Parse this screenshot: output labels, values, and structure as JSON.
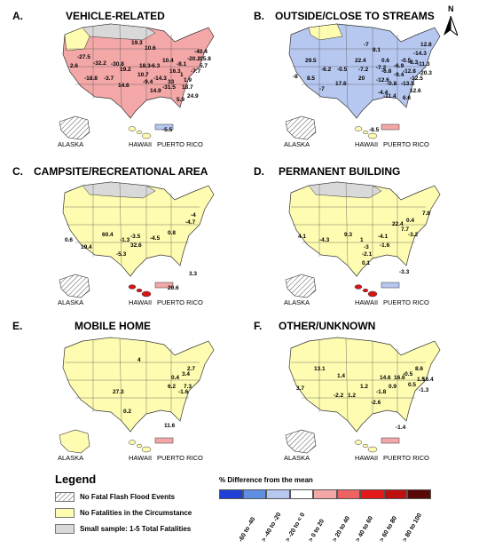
{
  "panels": [
    {
      "letter": "A.",
      "title": "VEHICLE-RELATED",
      "regions": [
        "ALASKA",
        "HAWAII",
        "PUERTO RICO"
      ],
      "values": [
        "2.6",
        "-27.5",
        "-32.2",
        "-30.8",
        "-18.8",
        "-3.7",
        "19.2",
        "14.6",
        "19.3",
        "10.6",
        "18.3",
        "-6.3",
        "10.7",
        "-9.4",
        "-14.3",
        "14.9",
        "-31.5",
        "33",
        "16.3",
        "10.4",
        "-8.1",
        "-20.2",
        "-40.4",
        "-15.8",
        "5.7",
        "-7.7",
        "1",
        "1.9",
        "18.7",
        "24.9",
        "5.9",
        "-5.5"
      ]
    },
    {
      "letter": "B.",
      "title": "OUTSIDE/CLOSE TO STREAMS",
      "regions": [
        "ALASKA",
        "HAWAII",
        "PUERTO RICO"
      ],
      "values": [
        "29.5",
        "-8",
        "8.5",
        "-6.2",
        "-0.5",
        "17.6",
        "-7",
        "-7.2",
        "22.4",
        "20",
        "-7.2",
        "8.1",
        "0.6",
        "-6.8",
        "-12.6",
        "-0.8",
        "-9.4",
        "-6.9",
        "-0.5",
        "-12.8",
        "-8.3",
        "-14.3",
        "-11.3",
        "-20.3",
        "-12.5",
        "-13.5",
        "12.6",
        "6.6",
        "-4.4",
        "-11.4",
        "-7",
        "12.8",
        "-8.5"
      ]
    },
    {
      "letter": "C.",
      "title": "CAMPSITE/RECREATIONAL AREA",
      "regions": [
        "ALASKA",
        "HAWAII",
        "PUERTO RICO"
      ],
      "values": [
        "0.6",
        "19.4",
        "60.4",
        "-1.3",
        "-3.5",
        "-5.3",
        "32.6",
        "-4.5",
        "-4.7",
        "-4",
        "0.8",
        "3.3",
        "20.6"
      ]
    },
    {
      "letter": "D.",
      "title": "PERMANENT BUILDING",
      "regions": [
        "ALASKA",
        "HAWAII",
        "PUERTO RICO"
      ],
      "values": [
        "4.1",
        "-4.3",
        "9.3",
        "1",
        "-3",
        "-2.1",
        "-4.1",
        "-1.6",
        "0.1",
        "22.4",
        "7.7",
        "0.4",
        "-3.2",
        "7.8",
        "-3.3"
      ]
    },
    {
      "letter": "E.",
      "title": "MOBILE HOME",
      "regions": [
        "ALASKA",
        "HAWAII",
        "PUERTO RICO"
      ],
      "values": [
        "27.3",
        "4",
        "0.2",
        "0.4",
        "6.2",
        "3.4",
        "-1.6",
        "7.3",
        "2.7",
        "11.6"
      ]
    },
    {
      "letter": "F.",
      "title": "OTHER/UNKNOWN",
      "regions": [
        "ALASKA",
        "HAWAII",
        "PUERTO RICO"
      ],
      "values": [
        "13.1",
        "3.7",
        "1.4",
        "1.2",
        "-2.2",
        "1.2",
        "-2.6",
        "14.6",
        "-1.8",
        "0.9",
        "16.6",
        "-0.5",
        "8.6",
        "0.5",
        "1.5",
        "-1.3",
        "16.4",
        "-1.4"
      ]
    }
  ],
  "north": "N",
  "legend": {
    "title": "Legend",
    "items": [
      {
        "label": "No Fatal Flash Flood Events",
        "swatch": "hatch"
      },
      {
        "label": "No Fatalities in the Circumstance",
        "swatch": "#fefcb0"
      },
      {
        "label": "Small sample: 1-5 Total Fatalities",
        "swatch": "#d9d9d9"
      }
    ],
    "scale_title": "% Difference from the mean",
    "scale_colors": [
      "#1f3fd6",
      "#5f8fe3",
      "#b6c7f0",
      "#ffffff",
      "#f3a7a7",
      "#ef6262",
      "#e5191c",
      "#bf1010",
      "#5a0707"
    ],
    "scale_labels": [
      "-60 to -40",
      "> -40 to -20",
      "> -20 to < 0",
      "> 0 to 20",
      "> 20 to 40",
      "> 40 to 60",
      "> 60 to 80",
      "> 80 to 100"
    ]
  }
}
